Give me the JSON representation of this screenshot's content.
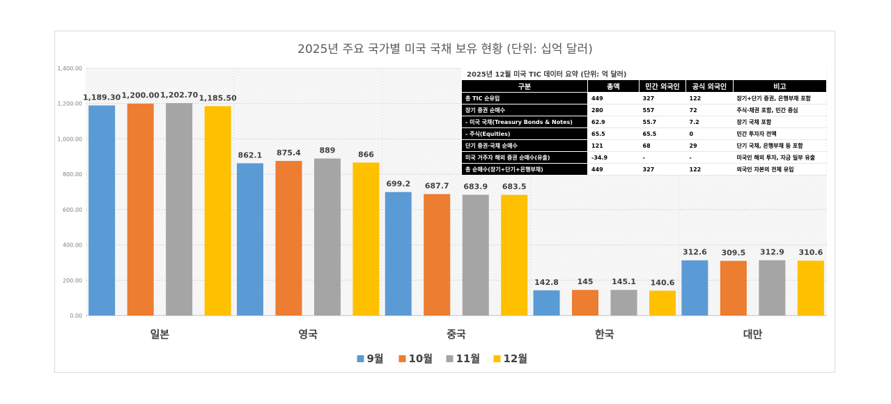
{
  "chart_data": {
    "type": "bar",
    "title": "2025년 주요 국가별 미국 국채 보유 현황 (단위: 십억 달러)",
    "categories": [
      "일본",
      "영국",
      "중국",
      "한국",
      "대만"
    ],
    "series": [
      {
        "name": "9월",
        "color": "#5b9bd5",
        "values": [
          1189.3,
          862.1,
          699.2,
          142.8,
          312.6
        ],
        "labels": [
          "1,189.30",
          "862.1",
          "699.2",
          "142.8",
          "312.6"
        ]
      },
      {
        "name": "10월",
        "color": "#ed7d31",
        "values": [
          1200.0,
          875.4,
          687.7,
          145,
          309.5
        ],
        "labels": [
          "1,200.00",
          "875.4",
          "687.7",
          "145",
          "309.5"
        ]
      },
      {
        "name": "11월",
        "color": "#a5a5a5",
        "values": [
          1202.7,
          889,
          683.9,
          145.1,
          312.9
        ],
        "labels": [
          "1,202.70",
          "889",
          "683.9",
          "145.1",
          "312.9"
        ]
      },
      {
        "name": "12월",
        "color": "#ffc000",
        "values": [
          1185.5,
          866,
          683.5,
          140.6,
          310.6
        ],
        "labels": [
          "1,185.50",
          "866",
          "683.5",
          "140.6",
          "310.6"
        ]
      }
    ],
    "ylim": [
      0,
      1400
    ],
    "yticks": [
      "0.00",
      "200.00",
      "400.00",
      "600.00",
      "800.00",
      "1,000.00",
      "1,200.00",
      "1,400.00"
    ],
    "xlabel": "",
    "ylabel": "",
    "legend": "bottom"
  },
  "table": {
    "title": "2025년 12월 미국 TIC 데이터 요약 (단위: 억 달러)",
    "headers": [
      "구분",
      "총액",
      "민간 외국인",
      "공식 외국인",
      "비고"
    ],
    "rows": [
      [
        "총 TIC 순유입",
        "449",
        "327",
        "122",
        "장기+단기 증권, 은행부채 포함"
      ],
      [
        "장기 증권 순매수",
        "280",
        "557",
        "72",
        "주식·채권 포함, 민간 중심"
      ],
      [
        "- 미국 국채(Treasury Bonds & Notes)",
        "62.9",
        "55.7",
        "7.2",
        "장기 국채 포함"
      ],
      [
        "- 주식(Equities)",
        "65.5",
        "65.5",
        "0",
        "민간 투자자 전액"
      ],
      [
        "단기 증권·국채 순매수",
        "121",
        "68",
        "29",
        "단기 국채, 은행부채 등 포함"
      ],
      [
        "미국 거주자 해외 증권 순매수(유출)",
        "-34.9",
        "-",
        "-",
        "미국인 해외 투자, 자금 일부 유출"
      ],
      [
        "총 순매수(장기+단기+은행부채)",
        "449",
        "327",
        "122",
        "외국인 자본의 전체 유입"
      ]
    ]
  }
}
